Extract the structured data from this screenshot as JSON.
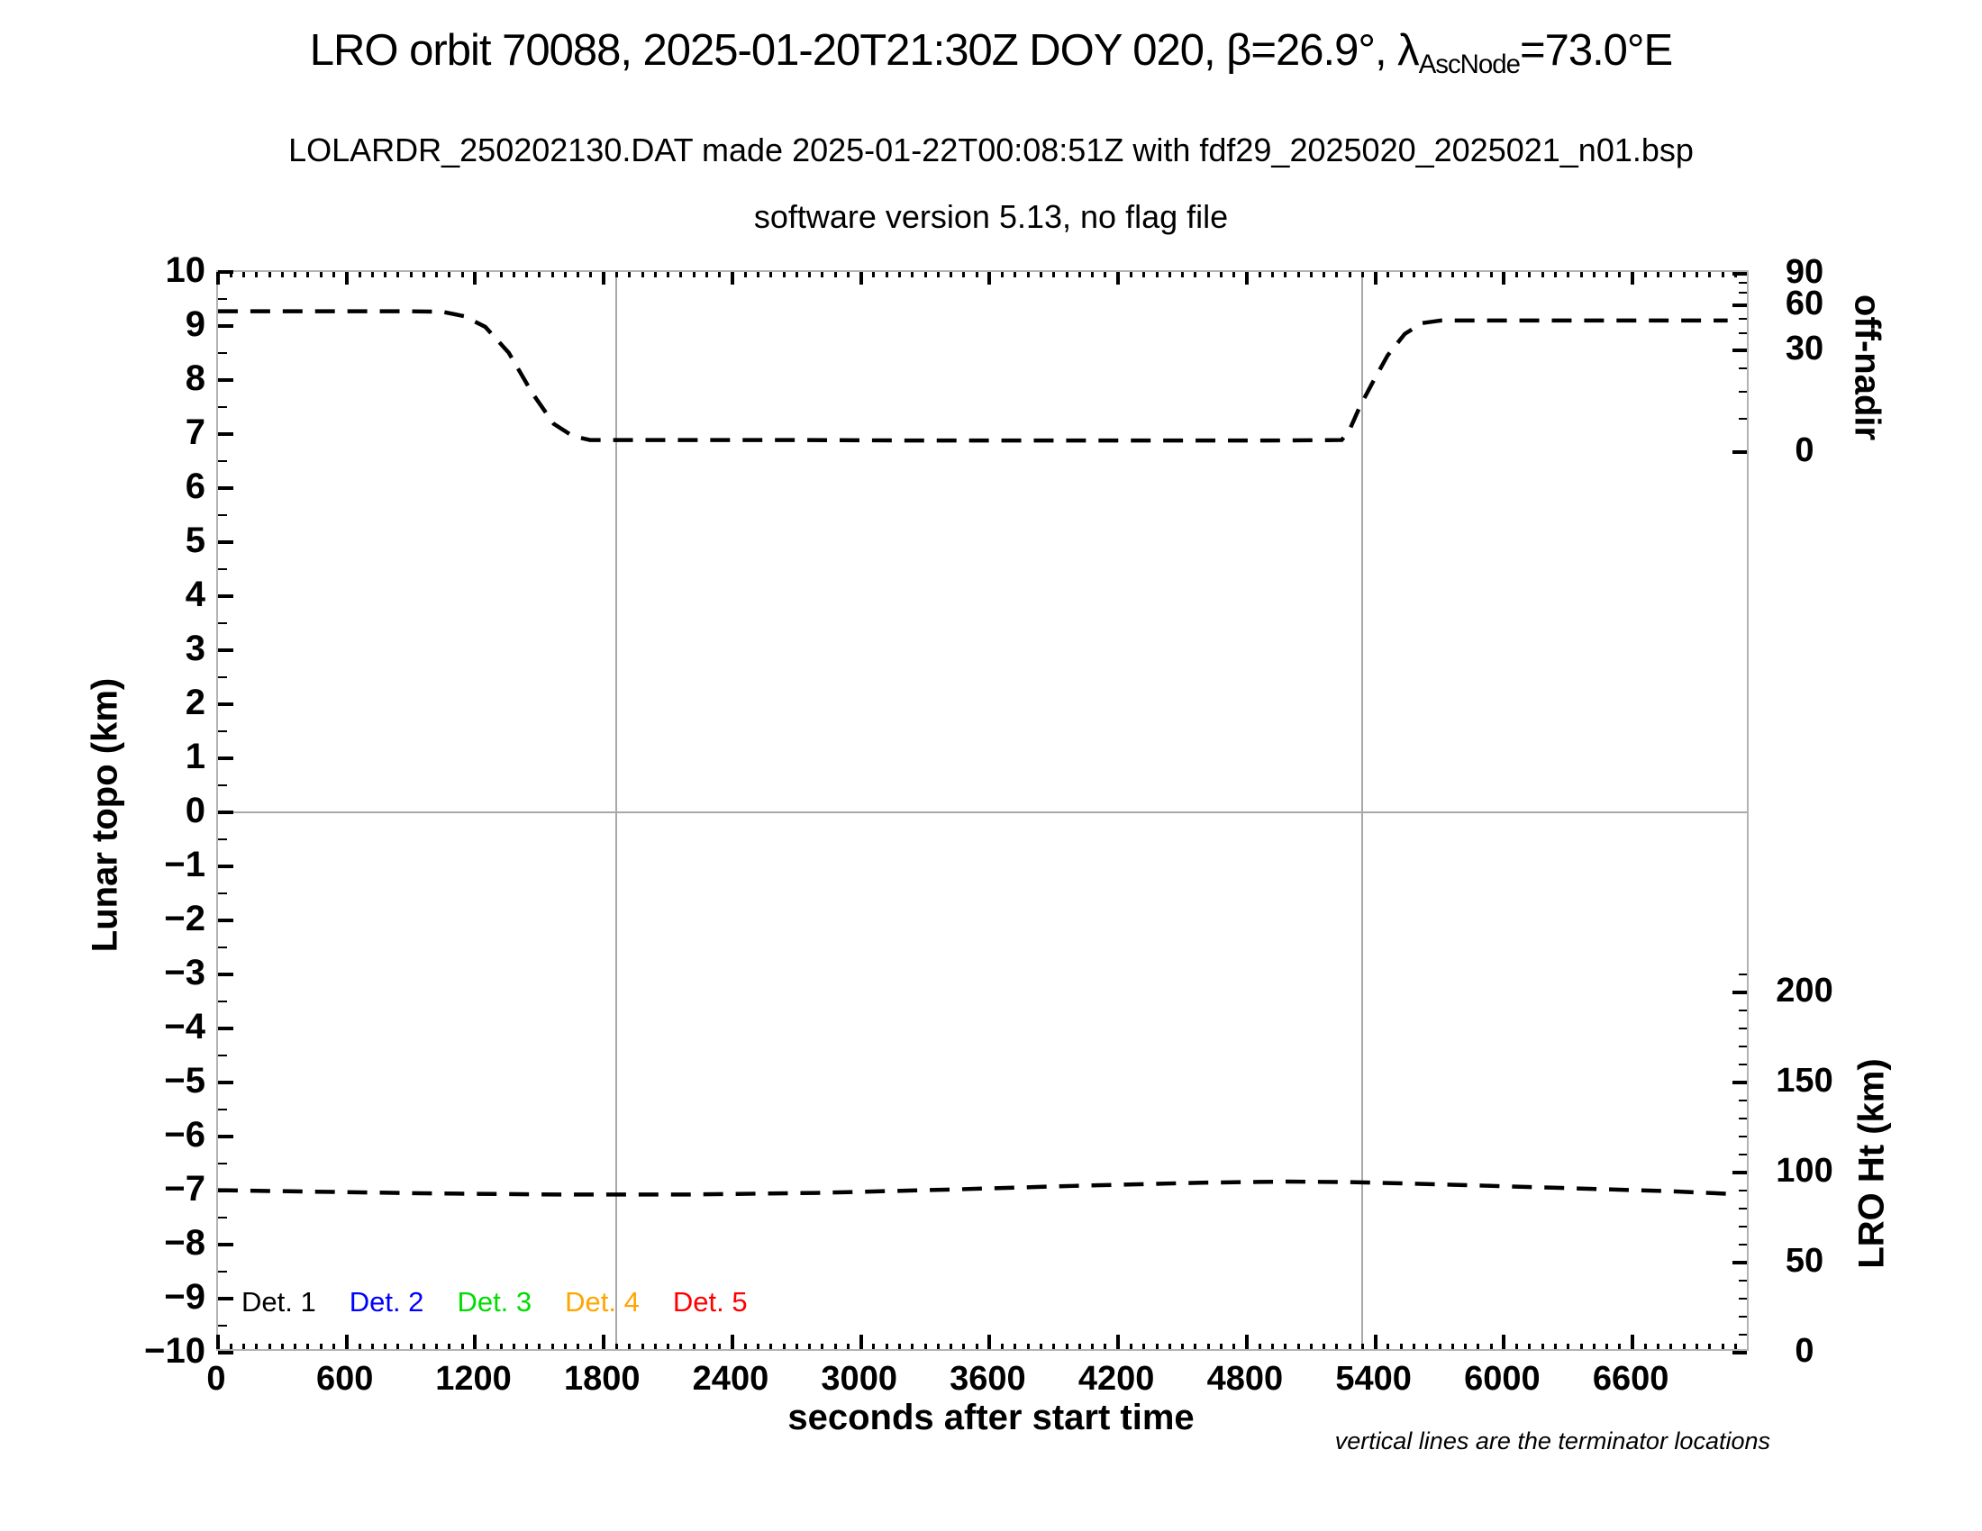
{
  "title": {
    "pre": "LRO orbit 70088, 2025-01-20T21:30Z DOY 020, β=26.9°, λ",
    "sub": "AscNode",
    "post": "=73.0°E"
  },
  "subtitle_line1": "LOLARDR_250202130.DAT made 2025-01-22T00:08:51Z with fdf29_2025020_2025021_n01.bsp",
  "subtitle_line2": "software version 5.13, no flag file",
  "footnote": "vertical lines are the terminator locations",
  "legend": {
    "items": [
      {
        "label": "Det. 1",
        "color": "#000000"
      },
      {
        "label": "Det. 2",
        "color": "#0000ff"
      },
      {
        "label": "Det. 3",
        "color": "#00dd00"
      },
      {
        "label": "Det. 4",
        "color": "#ffa500"
      },
      {
        "label": "Det. 5",
        "color": "#ff0000"
      }
    ]
  },
  "axis_titles": {
    "left": "Lunar topo (km)",
    "bottom": "seconds after start time",
    "right_top": "off-nadir",
    "right_bottom": "LRO Ht (km)"
  },
  "chart_data": {
    "type": "line",
    "title": "LRO orbit 70088, 2025-01-20T21:30Z DOY 020, β=26.9°, λAscNode=73.0°E",
    "xlabel": "seconds after start time",
    "ylabel": "Lunar topo (km)",
    "xlim": [
      0,
      7150
    ],
    "ylim_left": [
      -10,
      10
    ],
    "left_major_step": 1,
    "left_minor_step": 0.5,
    "x_major_ticks": [
      0,
      600,
      1200,
      1800,
      2400,
      3000,
      3600,
      4200,
      4800,
      5400,
      6000,
      6600
    ],
    "x_minor_step": 60,
    "grid": "zero-line only",
    "off_nadir_ticks": {
      "values": [
        90,
        80,
        70,
        60,
        50,
        40,
        30,
        20,
        10,
        5,
        0
      ],
      "plot_fracs": [
        0.0017,
        0.01,
        0.0192,
        0.0308,
        0.0433,
        0.0567,
        0.0725,
        0.0892,
        0.1108,
        0.1358,
        0.1667
      ],
      "labeled": [
        90,
        60,
        30,
        0
      ]
    },
    "lro_ht_ticks": {
      "labels": [
        200,
        150,
        100,
        50,
        0
      ],
      "min": 0,
      "max": 210,
      "minor_step": 10,
      "label_step": 50,
      "km_full_scale_at_frac1": 0,
      "km_per_plot_frac": 600
    },
    "terminator_lines_x": [
      1860,
      5340
    ],
    "series": [
      {
        "name": "off-nadir angle",
        "axis": "right_top",
        "style": "dashed",
        "color": "#000000",
        "points": [
          [
            0,
            9.27
          ],
          [
            300,
            9.27
          ],
          [
            600,
            9.27
          ],
          [
            900,
            9.27
          ],
          [
            1050,
            9.26
          ],
          [
            1150,
            9.18
          ],
          [
            1250,
            8.98
          ],
          [
            1360,
            8.5
          ],
          [
            1470,
            7.75
          ],
          [
            1570,
            7.18
          ],
          [
            1660,
            6.95
          ],
          [
            1740,
            6.88
          ],
          [
            2100,
            6.88
          ],
          [
            2700,
            6.88
          ],
          [
            3300,
            6.87
          ],
          [
            3900,
            6.87
          ],
          [
            4500,
            6.87
          ],
          [
            4900,
            6.87
          ],
          [
            5255,
            6.88
          ],
          [
            5290,
            7.05
          ],
          [
            5340,
            7.5
          ],
          [
            5400,
            7.95
          ],
          [
            5470,
            8.45
          ],
          [
            5550,
            8.85
          ],
          [
            5630,
            9.05
          ],
          [
            5720,
            9.1
          ],
          [
            6100,
            9.1
          ],
          [
            6500,
            9.1
          ],
          [
            6900,
            9.1
          ],
          [
            7060,
            9.1
          ]
        ],
        "approx_off_nadir_deg": {
          "start_flat": 55,
          "mid_flat": 3,
          "end_flat": 49
        }
      },
      {
        "name": "LRO height",
        "axis": "right_bottom",
        "style": "dashed",
        "color": "#000000",
        "points": [
          [
            0,
            -7.05
          ],
          [
            500,
            -7.08
          ],
          [
            1000,
            -7.11
          ],
          [
            1600,
            -7.13
          ],
          [
            2200,
            -7.13
          ],
          [
            2800,
            -7.1
          ],
          [
            3400,
            -7.04
          ],
          [
            4000,
            -6.97
          ],
          [
            4600,
            -6.91
          ],
          [
            5000,
            -6.89
          ],
          [
            5300,
            -6.9
          ],
          [
            5700,
            -6.94
          ],
          [
            6300,
            -7.01
          ],
          [
            6800,
            -7.07
          ],
          [
            7080,
            -7.12
          ]
        ],
        "approx_height_km": [
          88.5,
          87.6,
          86.7,
          86.1,
          86.1,
          87.0,
          88.8,
          90.9,
          92.7,
          93.3,
          93.0,
          91.8,
          89.7,
          87.9,
          86.4
        ]
      }
    ],
    "annotations": [
      "vertical lines are the terminator locations"
    ],
    "legend_entries": [
      "Det. 1",
      "Det. 2",
      "Det. 3",
      "Det. 4",
      "Det. 5"
    ],
    "legend_position": "bottom-left inside plot"
  }
}
